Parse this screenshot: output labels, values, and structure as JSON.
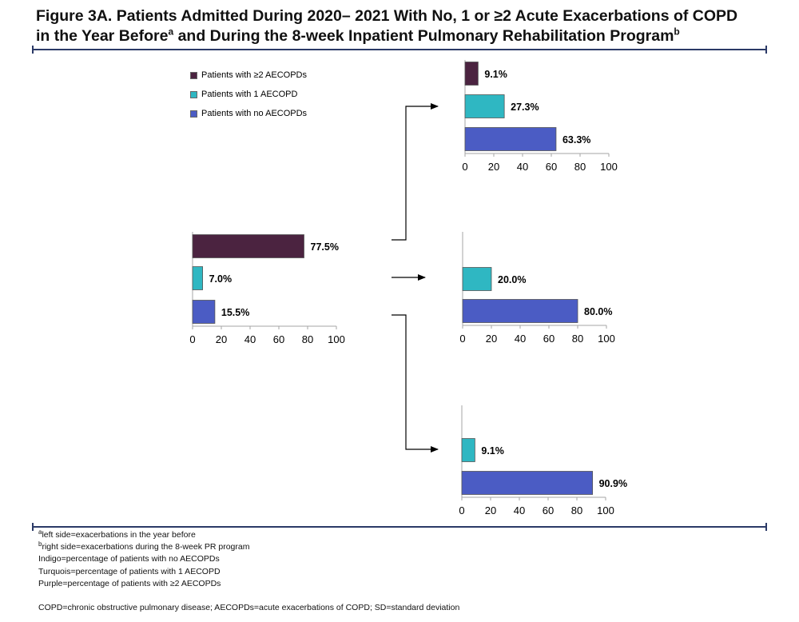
{
  "title": {
    "line1": "Figure 3A. Patients Admitted During 2020– 2021 With No, 1 or ≥2 Acute Exacerbations of COPD",
    "line2_part1": "in the Year Before",
    "line2_sup1": "a",
    "line2_part2": " and During the 8-week Inpatient Pulmonary Rehabilitation Program",
    "line2_sup2": "b"
  },
  "legend": [
    {
      "label": "Patients with ≥2 AECOPDs",
      "color": "#4b2340"
    },
    {
      "label": "Patients with 1 AECOPD",
      "color": "#2fb7c2"
    },
    {
      "label": "Patients with no AECOPDs",
      "color": "#4b5cc4"
    }
  ],
  "colors": {
    "purple": "#4b2340",
    "turquoise": "#2fb7c2",
    "indigo": "#4b5cc4",
    "axis": "#a6a6a6",
    "rule": "#2b3a67"
  },
  "chart_data": [
    {
      "id": "before",
      "type": "bar",
      "orientation": "horizontal",
      "xlim": [
        0,
        100
      ],
      "ticks": [
        0,
        20,
        40,
        60,
        80,
        100
      ],
      "series": [
        {
          "name": "Patients with ≥2 AECOPDs",
          "value": 77.5,
          "label": "77.5%",
          "color": "#4b2340"
        },
        {
          "name": "Patients with 1 AECOPD",
          "value": 7.0,
          "label": "7.0%",
          "color": "#2fb7c2"
        },
        {
          "name": "Patients with no AECOPDs",
          "value": 15.5,
          "label": "15.5%",
          "color": "#4b5cc4"
        }
      ]
    },
    {
      "id": "during-from-2plus",
      "type": "bar",
      "orientation": "horizontal",
      "xlim": [
        0,
        100
      ],
      "ticks": [
        0,
        20,
        40,
        60,
        80,
        100
      ],
      "series": [
        {
          "name": "Patients with ≥2 AECOPDs",
          "value": 9.1,
          "label": "9.1%",
          "color": "#4b2340"
        },
        {
          "name": "Patients with 1 AECOPD",
          "value": 27.3,
          "label": "27.3%",
          "color": "#2fb7c2"
        },
        {
          "name": "Patients with no AECOPDs",
          "value": 63.3,
          "label": "63.3%",
          "color": "#4b5cc4"
        }
      ]
    },
    {
      "id": "during-from-1",
      "type": "bar",
      "orientation": "horizontal",
      "xlim": [
        0,
        100
      ],
      "ticks": [
        0,
        20,
        40,
        60,
        80,
        100
      ],
      "series": [
        {
          "name": "Patients with 1 AECOPD",
          "value": 20.0,
          "label": "20.0%",
          "color": "#2fb7c2"
        },
        {
          "name": "Patients with no AECOPDs",
          "value": 80.0,
          "label": "80.0%",
          "color": "#4b5cc4"
        }
      ]
    },
    {
      "id": "during-from-none",
      "type": "bar",
      "orientation": "horizontal",
      "xlim": [
        0,
        100
      ],
      "ticks": [
        0,
        20,
        40,
        60,
        80,
        100
      ],
      "series": [
        {
          "name": "Patients with 1 AECOPD",
          "value": 9.1,
          "label": "9.1%",
          "color": "#2fb7c2"
        },
        {
          "name": "Patients with no AECOPDs",
          "value": 90.9,
          "label": "90.9%",
          "color": "#4b5cc4"
        }
      ]
    }
  ],
  "footnotes": {
    "a_sup": "a",
    "a_text": "left side=exacerbations in the year before",
    "b_sup": "b",
    "b_text": "right side=exacerbations during the 8-week PR program",
    "indigo": "Indigo=percentage of patients with no AECOPDs",
    "turquoise": "Turquois=percentage of patients with 1 AECOPD",
    "purple": "Purple=percentage of patients with ≥2 AECOPDs",
    "abbreviations": "COPD=chronic obstructive pulmonary disease; AECOPDs=acute exacerbations of COPD; SD=standard deviation"
  }
}
